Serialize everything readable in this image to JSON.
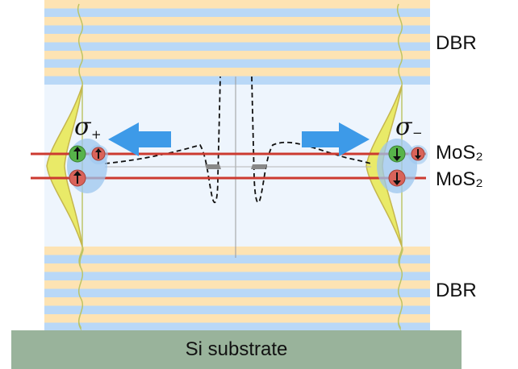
{
  "labels": {
    "dbr_top": "DBR",
    "dbr_bottom": "DBR",
    "mos2_top": "MoS₂",
    "mos2_bottom": "MoS₂",
    "substrate": "Si substrate",
    "sigma_left": "σ",
    "sigma_left_sub": "+",
    "sigma_right": "σ",
    "sigma_right_sub": "−"
  },
  "colors": {
    "dbr_stripe_orange": "#fde3b3",
    "dbr_stripe_blue": "#b9d8f7",
    "cavity": "#eef5fd",
    "substrate": "#99b39b",
    "mos2_line": "#cc3a30",
    "arrow_blue": "#3d9ae8",
    "spin_up_green": "#57b34a",
    "spin_red": "#d9635a",
    "halo_blue": "#9cc6ee",
    "field_yellow": "#e9ea68",
    "field_green": "#9ec27c"
  },
  "icons": {
    "left_arrow": "arrow-left-icon",
    "right_arrow": "arrow-right-icon",
    "spin_up": "spin-up-icon",
    "spin_down": "spin-down-icon"
  }
}
